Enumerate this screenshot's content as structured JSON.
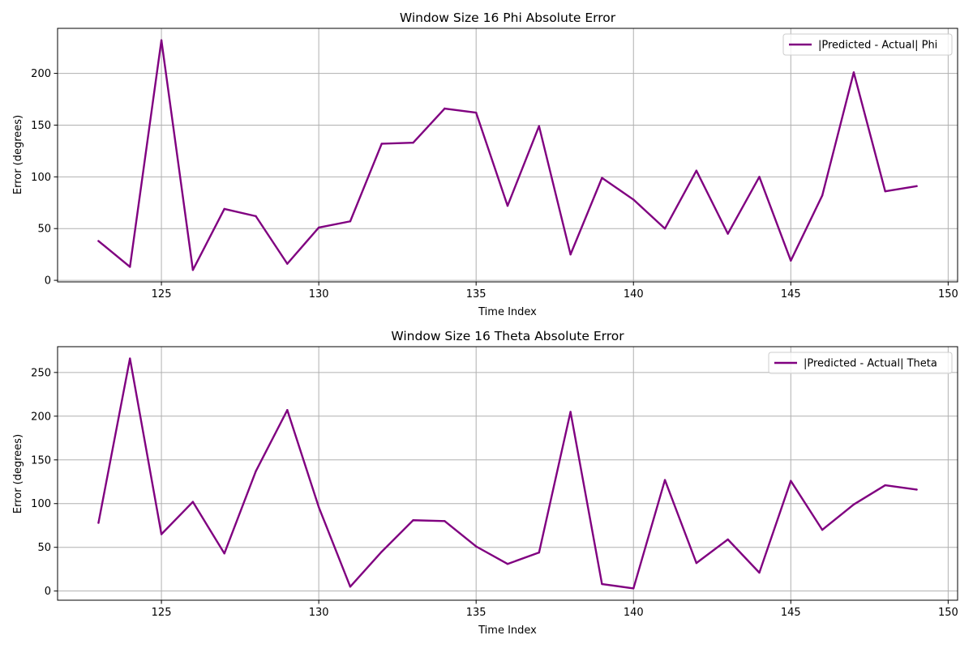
{
  "colors": {
    "series": "#800080",
    "grid": "#b0b0b0",
    "legend_border": "#cccccc"
  },
  "chart_data": [
    {
      "type": "line",
      "title": "Window Size 16 Phi Absolute Error",
      "xlabel": "Time Index",
      "ylabel": "Error (degrees)",
      "xlim": [
        121.7,
        150.3
      ],
      "ylim": [
        -1.5,
        243.5
      ],
      "xticks": [
        125,
        130,
        135,
        140,
        145,
        150
      ],
      "yticks": [
        0,
        50,
        100,
        150,
        200
      ],
      "grid": true,
      "legend_position": "upper right",
      "series": [
        {
          "name": "|Predicted - Actual| Phi",
          "x": [
            123,
            124,
            125,
            126,
            127,
            128,
            129,
            130,
            131,
            132,
            133,
            134,
            135,
            136,
            137,
            138,
            139,
            140,
            141,
            142,
            143,
            144,
            145,
            146,
            147,
            148,
            149
          ],
          "y": [
            38,
            13,
            232,
            10,
            69,
            62,
            16,
            51,
            57,
            132,
            133,
            166,
            162,
            72,
            149,
            25,
            99,
            78,
            50,
            106,
            45,
            100,
            19,
            82,
            201,
            86,
            91
          ]
        }
      ]
    },
    {
      "type": "line",
      "title": "Window Size 16 Theta Absolute Error",
      "xlabel": "Time Index",
      "ylabel": "Error (degrees)",
      "xlim": [
        121.7,
        150.3
      ],
      "ylim": [
        -10.5,
        279.5
      ],
      "xticks": [
        125,
        130,
        135,
        140,
        145,
        150
      ],
      "yticks": [
        0,
        50,
        100,
        150,
        200,
        250
      ],
      "grid": true,
      "legend_position": "upper right",
      "series": [
        {
          "name": "|Predicted - Actual| Theta",
          "x": [
            123,
            124,
            125,
            126,
            127,
            128,
            129,
            130,
            131,
            132,
            133,
            134,
            135,
            136,
            137,
            138,
            139,
            140,
            141,
            142,
            143,
            144,
            145,
            146,
            147,
            148,
            149
          ],
          "y": [
            78,
            266,
            65,
            102,
            43,
            137,
            207,
            96,
            5,
            45,
            81,
            80,
            51,
            31,
            44,
            205,
            8,
            3,
            127,
            32,
            59,
            21,
            126,
            70,
            99,
            121,
            116
          ]
        }
      ]
    }
  ]
}
